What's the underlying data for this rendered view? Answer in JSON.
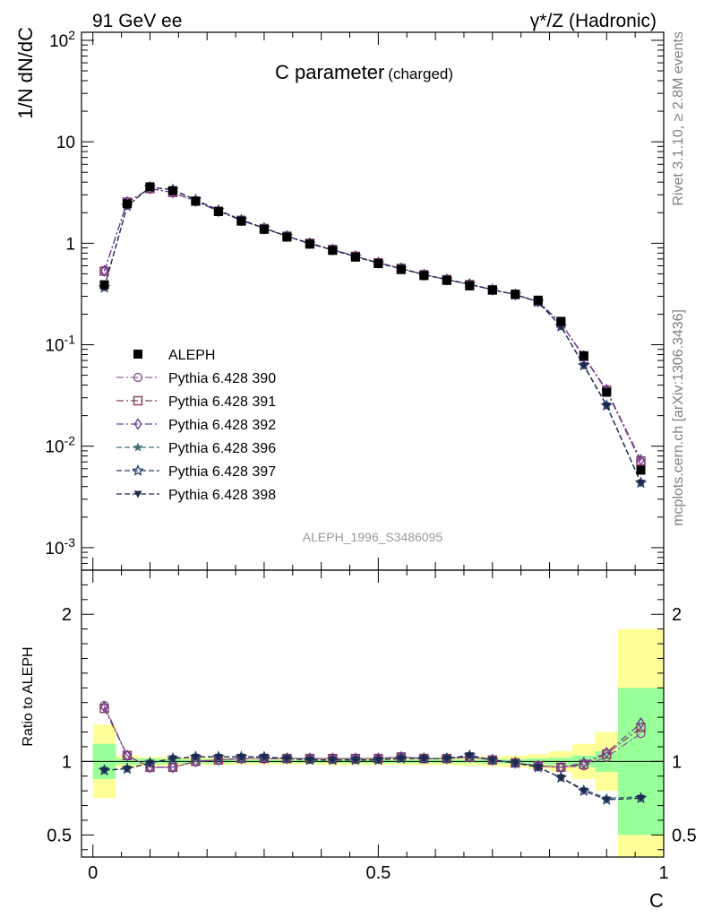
{
  "header": {
    "left": "91 GeV ee",
    "right": "γ*/Z (Hadronic)"
  },
  "side_labels": {
    "top": "Rivet 3.1.10, ≥ 2.8M events",
    "bottom": "mcplots.cern.ch [arXiv:1306.3436]"
  },
  "chart_data": {
    "type": "line",
    "title_main": "C parameter",
    "title_sub": "(charged)",
    "watermark": "ALEPH_1996_S3486095",
    "xlabel": "C",
    "ylabel": "1/N dN/dC",
    "ratio_ylabel": "Ratio to ALEPH",
    "xlim": [
      -0.02,
      1.0
    ],
    "ylim": [
      0.0006,
      120
    ],
    "yscale": "log",
    "ratio_ylim": [
      0.35,
      2.3
    ],
    "x_ticks": [
      "0",
      "0.5",
      "1"
    ],
    "y_tick_labels": [
      "10^-3",
      "10^-2",
      "10^-1",
      "1",
      "10",
      "10^2"
    ],
    "ratio_tick_labels": [
      "0.5",
      "1",
      "2"
    ],
    "legend_position": "middle-left",
    "x": [
      0.02,
      0.06,
      0.1,
      0.14,
      0.18,
      0.22,
      0.26,
      0.3,
      0.34,
      0.38,
      0.42,
      0.46,
      0.5,
      0.54,
      0.58,
      0.62,
      0.66,
      0.7,
      0.74,
      0.78,
      0.82,
      0.86,
      0.9,
      0.96
    ],
    "x_edges": [
      0.0,
      0.04,
      0.08,
      0.12,
      0.16,
      0.2,
      0.24,
      0.28,
      0.32,
      0.36,
      0.4,
      0.44,
      0.48,
      0.52,
      0.56,
      0.6,
      0.64,
      0.68,
      0.72,
      0.76,
      0.8,
      0.84,
      0.88,
      0.92,
      1.0
    ],
    "data": {
      "name": "ALEPH",
      "values": [
        0.39,
        2.45,
        3.6,
        3.3,
        2.6,
        2.05,
        1.65,
        1.37,
        1.15,
        0.98,
        0.85,
        0.73,
        0.63,
        0.55,
        0.48,
        0.43,
        0.38,
        0.345,
        0.315,
        0.275,
        0.17,
        0.078,
        0.034,
        0.0058
      ],
      "band_inner": [
        0.12,
        0.02,
        0.02,
        0.015,
        0.015,
        0.015,
        0.01,
        0.01,
        0.01,
        0.01,
        0.01,
        0.012,
        0.012,
        0.012,
        0.012,
        0.012,
        0.012,
        0.015,
        0.015,
        0.02,
        0.025,
        0.04,
        0.07,
        0.5
      ],
      "band_outer": [
        0.25,
        0.04,
        0.03,
        0.03,
        0.025,
        0.025,
        0.02,
        0.02,
        0.02,
        0.02,
        0.025,
        0.025,
        0.025,
        0.025,
        0.025,
        0.025,
        0.03,
        0.035,
        0.04,
        0.05,
        0.07,
        0.12,
        0.2,
        0.9
      ]
    },
    "series": [
      {
        "name": "Pythia 6.428 390",
        "color": "#8e5b8f",
        "marker": "circle-open",
        "dash": "8,3,2,3",
        "ratio": [
          1.38,
          1.04,
          0.96,
          0.96,
          1.0,
          1.01,
          1.02,
          1.02,
          1.02,
          1.02,
          1.02,
          1.02,
          1.02,
          1.03,
          1.02,
          1.02,
          1.03,
          1.01,
          0.99,
          0.97,
          0.96,
          0.97,
          1.03,
          1.19
        ]
      },
      {
        "name": "Pythia 6.428 391",
        "color": "#8b3a5b",
        "marker": "square-open",
        "dash": "8,3,2,3",
        "ratio": [
          1.36,
          1.04,
          0.96,
          0.96,
          1.0,
          1.01,
          1.02,
          1.02,
          1.02,
          1.02,
          1.02,
          1.02,
          1.02,
          1.03,
          1.02,
          1.02,
          1.03,
          1.01,
          0.99,
          0.97,
          0.96,
          0.98,
          1.05,
          1.23
        ]
      },
      {
        "name": "Pythia 6.428 392",
        "color": "#6a3d9a",
        "marker": "diamond-open",
        "dash": "8,3,2,3",
        "ratio": [
          1.37,
          1.04,
          0.96,
          0.96,
          1.0,
          1.01,
          1.02,
          1.02,
          1.02,
          1.02,
          1.02,
          1.02,
          1.02,
          1.03,
          1.02,
          1.02,
          1.03,
          1.01,
          0.99,
          0.97,
          0.96,
          0.99,
          1.06,
          1.26
        ]
      },
      {
        "name": "Pythia 6.428 396",
        "color": "#3f6e7a",
        "marker": "star-filled",
        "dash": "6,3",
        "ratio": [
          0.94,
          0.95,
          0.99,
          1.02,
          1.03,
          1.03,
          1.03,
          1.03,
          1.02,
          1.01,
          1.01,
          1.01,
          1.01,
          1.02,
          1.02,
          1.02,
          1.04,
          1.01,
          0.99,
          0.96,
          0.89,
          0.81,
          0.75,
          0.76
        ]
      },
      {
        "name": "Pythia 6.428 397",
        "color": "#2b3f6c",
        "marker": "star-open",
        "dash": "6,3",
        "ratio": [
          0.94,
          0.95,
          0.99,
          1.02,
          1.03,
          1.03,
          1.03,
          1.03,
          1.02,
          1.01,
          1.01,
          1.01,
          1.01,
          1.02,
          1.02,
          1.02,
          1.04,
          1.01,
          0.99,
          0.96,
          0.89,
          0.8,
          0.74,
          0.75
        ]
      },
      {
        "name": "Pythia 6.428 398",
        "color": "#1c2a4e",
        "marker": "triangle-down-filled",
        "dash": "6,3",
        "ratio": [
          0.94,
          0.95,
          0.99,
          1.02,
          1.03,
          1.03,
          1.03,
          1.03,
          1.02,
          1.01,
          1.01,
          1.01,
          1.01,
          1.02,
          1.02,
          1.02,
          1.04,
          1.01,
          0.99,
          0.96,
          0.89,
          0.8,
          0.74,
          0.75
        ]
      }
    ],
    "colors": {
      "band_inner": "#99ff99",
      "band_outer": "#ffff99",
      "data": "#000000"
    }
  }
}
